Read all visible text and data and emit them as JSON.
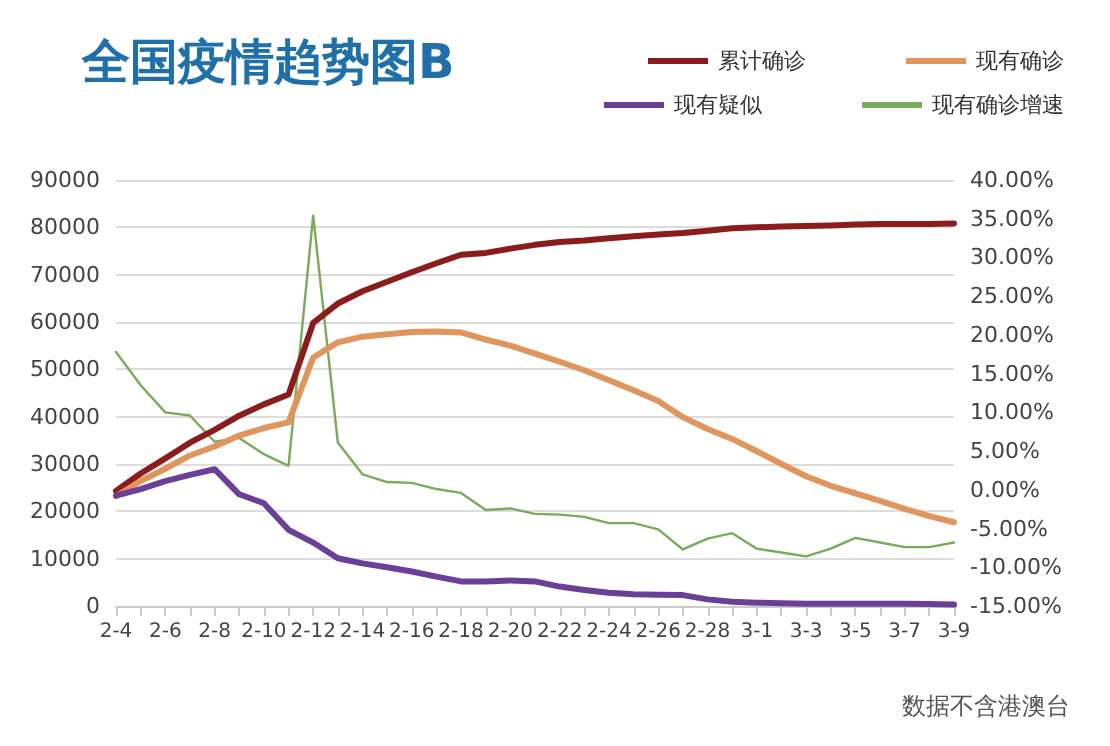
{
  "chart_data": {
    "type": "line",
    "title": "全国疫情趋势图B",
    "categories": [
      "2-4",
      null,
      "2-6",
      null,
      "2-8",
      null,
      "2-10",
      null,
      "2-12",
      null,
      "2-14",
      null,
      "2-16",
      null,
      "2-18",
      null,
      "2-20",
      null,
      "2-22",
      null,
      "2-24",
      null,
      "2-26",
      null,
      "2-28",
      null,
      "3-1",
      null,
      "3-3",
      null,
      "3-5",
      null,
      "3-7",
      null,
      "3-9"
    ],
    "series": [
      {
        "name": "累计确诊",
        "color": "#8b1c1c",
        "values": [
          24300,
          28000,
          31200,
          34500,
          37200,
          40200,
          42600,
          44700,
          59800,
          63900,
          66500,
          68500,
          70500,
          72400,
          74200,
          74600,
          75500,
          76300,
          76900,
          77200,
          77700,
          78100,
          78500,
          78800,
          79300,
          79800,
          80000,
          80200,
          80300,
          80400,
          80600,
          80700,
          80700,
          80700,
          80800
        ]
      },
      {
        "name": "现有确诊",
        "color": "#e0955c",
        "values": [
          23200,
          26400,
          29000,
          31800,
          33700,
          36000,
          37600,
          38800,
          52500,
          55700,
          56900,
          57400,
          57900,
          58000,
          57800,
          56300,
          55000,
          53300,
          51600,
          49800,
          47700,
          45600,
          43300,
          39900,
          37400,
          35300,
          32700,
          30000,
          27400,
          25400,
          23800,
          22200,
          20500,
          19000,
          17700
        ]
      },
      {
        "name": "现有疑似",
        "color": "#6b3f98",
        "values": [
          23300,
          24700,
          26400,
          27700,
          28900,
          23600,
          21700,
          16100,
          13400,
          10100,
          9000,
          8200,
          7300,
          6200,
          5200,
          5200,
          5400,
          5200,
          4100,
          3400,
          2800,
          2500,
          2400,
          2300,
          1400,
          900,
          700,
          600,
          500,
          500,
          500,
          500,
          500,
          400,
          300
        ]
      },
      {
        "name": "现有确诊增速",
        "color": "#7aab5a",
        "axis": "y2",
        "values": [
          17.8,
          13.5,
          10.0,
          9.6,
          6.2,
          6.7,
          4.6,
          3.1,
          35.4,
          6.1,
          2.0,
          1.0,
          0.9,
          0.1,
          -0.4,
          -2.6,
          -2.4,
          -3.1,
          -3.2,
          -3.5,
          -4.3,
          -4.3,
          -5.1,
          -7.7,
          -6.3,
          -5.6,
          -7.6,
          -8.1,
          -8.6,
          -7.6,
          -6.2,
          -6.8,
          -7.4,
          -7.4,
          -6.8
        ]
      }
    ],
    "ylim": [
      0,
      90000
    ],
    "yticks": [
      0,
      10000,
      20000,
      30000,
      40000,
      50000,
      60000,
      70000,
      80000,
      90000
    ],
    "y2lim": [
      -15,
      40
    ],
    "y2ticks": [
      {
        "value": -15,
        "label": "-15.00%"
      },
      {
        "value": -10,
        "label": "-10.00%"
      },
      {
        "value": -5,
        "label": "-5.00%"
      },
      {
        "value": 0,
        "label": "0.00%"
      },
      {
        "value": 5,
        "label": "5.00%"
      },
      {
        "value": 10,
        "label": "10.00%"
      },
      {
        "value": 15,
        "label": "15.00%"
      },
      {
        "value": 20,
        "label": "20.00%"
      },
      {
        "value": 25,
        "label": "25.00%"
      },
      {
        "value": 30,
        "label": "30.00%"
      },
      {
        "value": 35,
        "label": "35.00%"
      },
      {
        "value": 40,
        "label": "40.00%"
      }
    ],
    "grid": "y",
    "legend": "top right",
    "marker": "none",
    "line_style": "solid",
    "annotations": [
      "数据不含港澳台"
    ]
  }
}
